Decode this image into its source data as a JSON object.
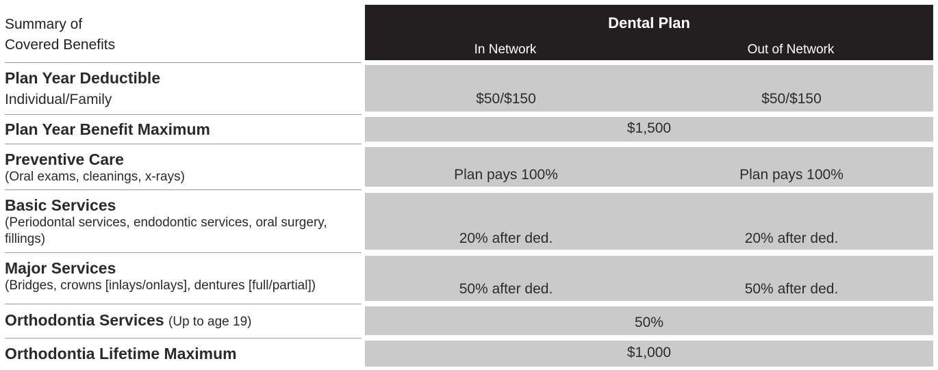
{
  "header": {
    "summary_line1": "Summary of",
    "summary_line2": "Covered Benefits",
    "plan_title": "Dental Plan",
    "in_network": "In Network",
    "out_network": "Out of Network"
  },
  "rows": {
    "deductible": {
      "title": "Plan Year Deductible",
      "sub": "Individual/Family",
      "in": "$50/$150",
      "out": "$50/$150"
    },
    "benefit_max": {
      "title": "Plan Year Benefit Maximum",
      "value": "$1,500"
    },
    "preventive": {
      "title": "Preventive Care",
      "sub": "(Oral exams, cleanings, x-rays)",
      "in": "Plan pays 100%",
      "out": "Plan pays 100%"
    },
    "basic": {
      "title": "Basic Services",
      "sub": "(Periodontal services, endodontic services, oral surgery, fillings)",
      "in": "20% after ded.",
      "out": "20% after ded."
    },
    "major": {
      "title": "Major Services",
      "sub": "(Bridges, crowns [inlays/onlays], dentures [full/partial])",
      "in": "50% after ded.",
      "out": "50% after ded."
    },
    "ortho": {
      "title": "Orthodontia Services",
      "note": "(Up to age 19)",
      "value": "50%"
    },
    "ortho_max": {
      "title": "Orthodontia Lifetime Maximum",
      "value": "$1,000"
    }
  }
}
